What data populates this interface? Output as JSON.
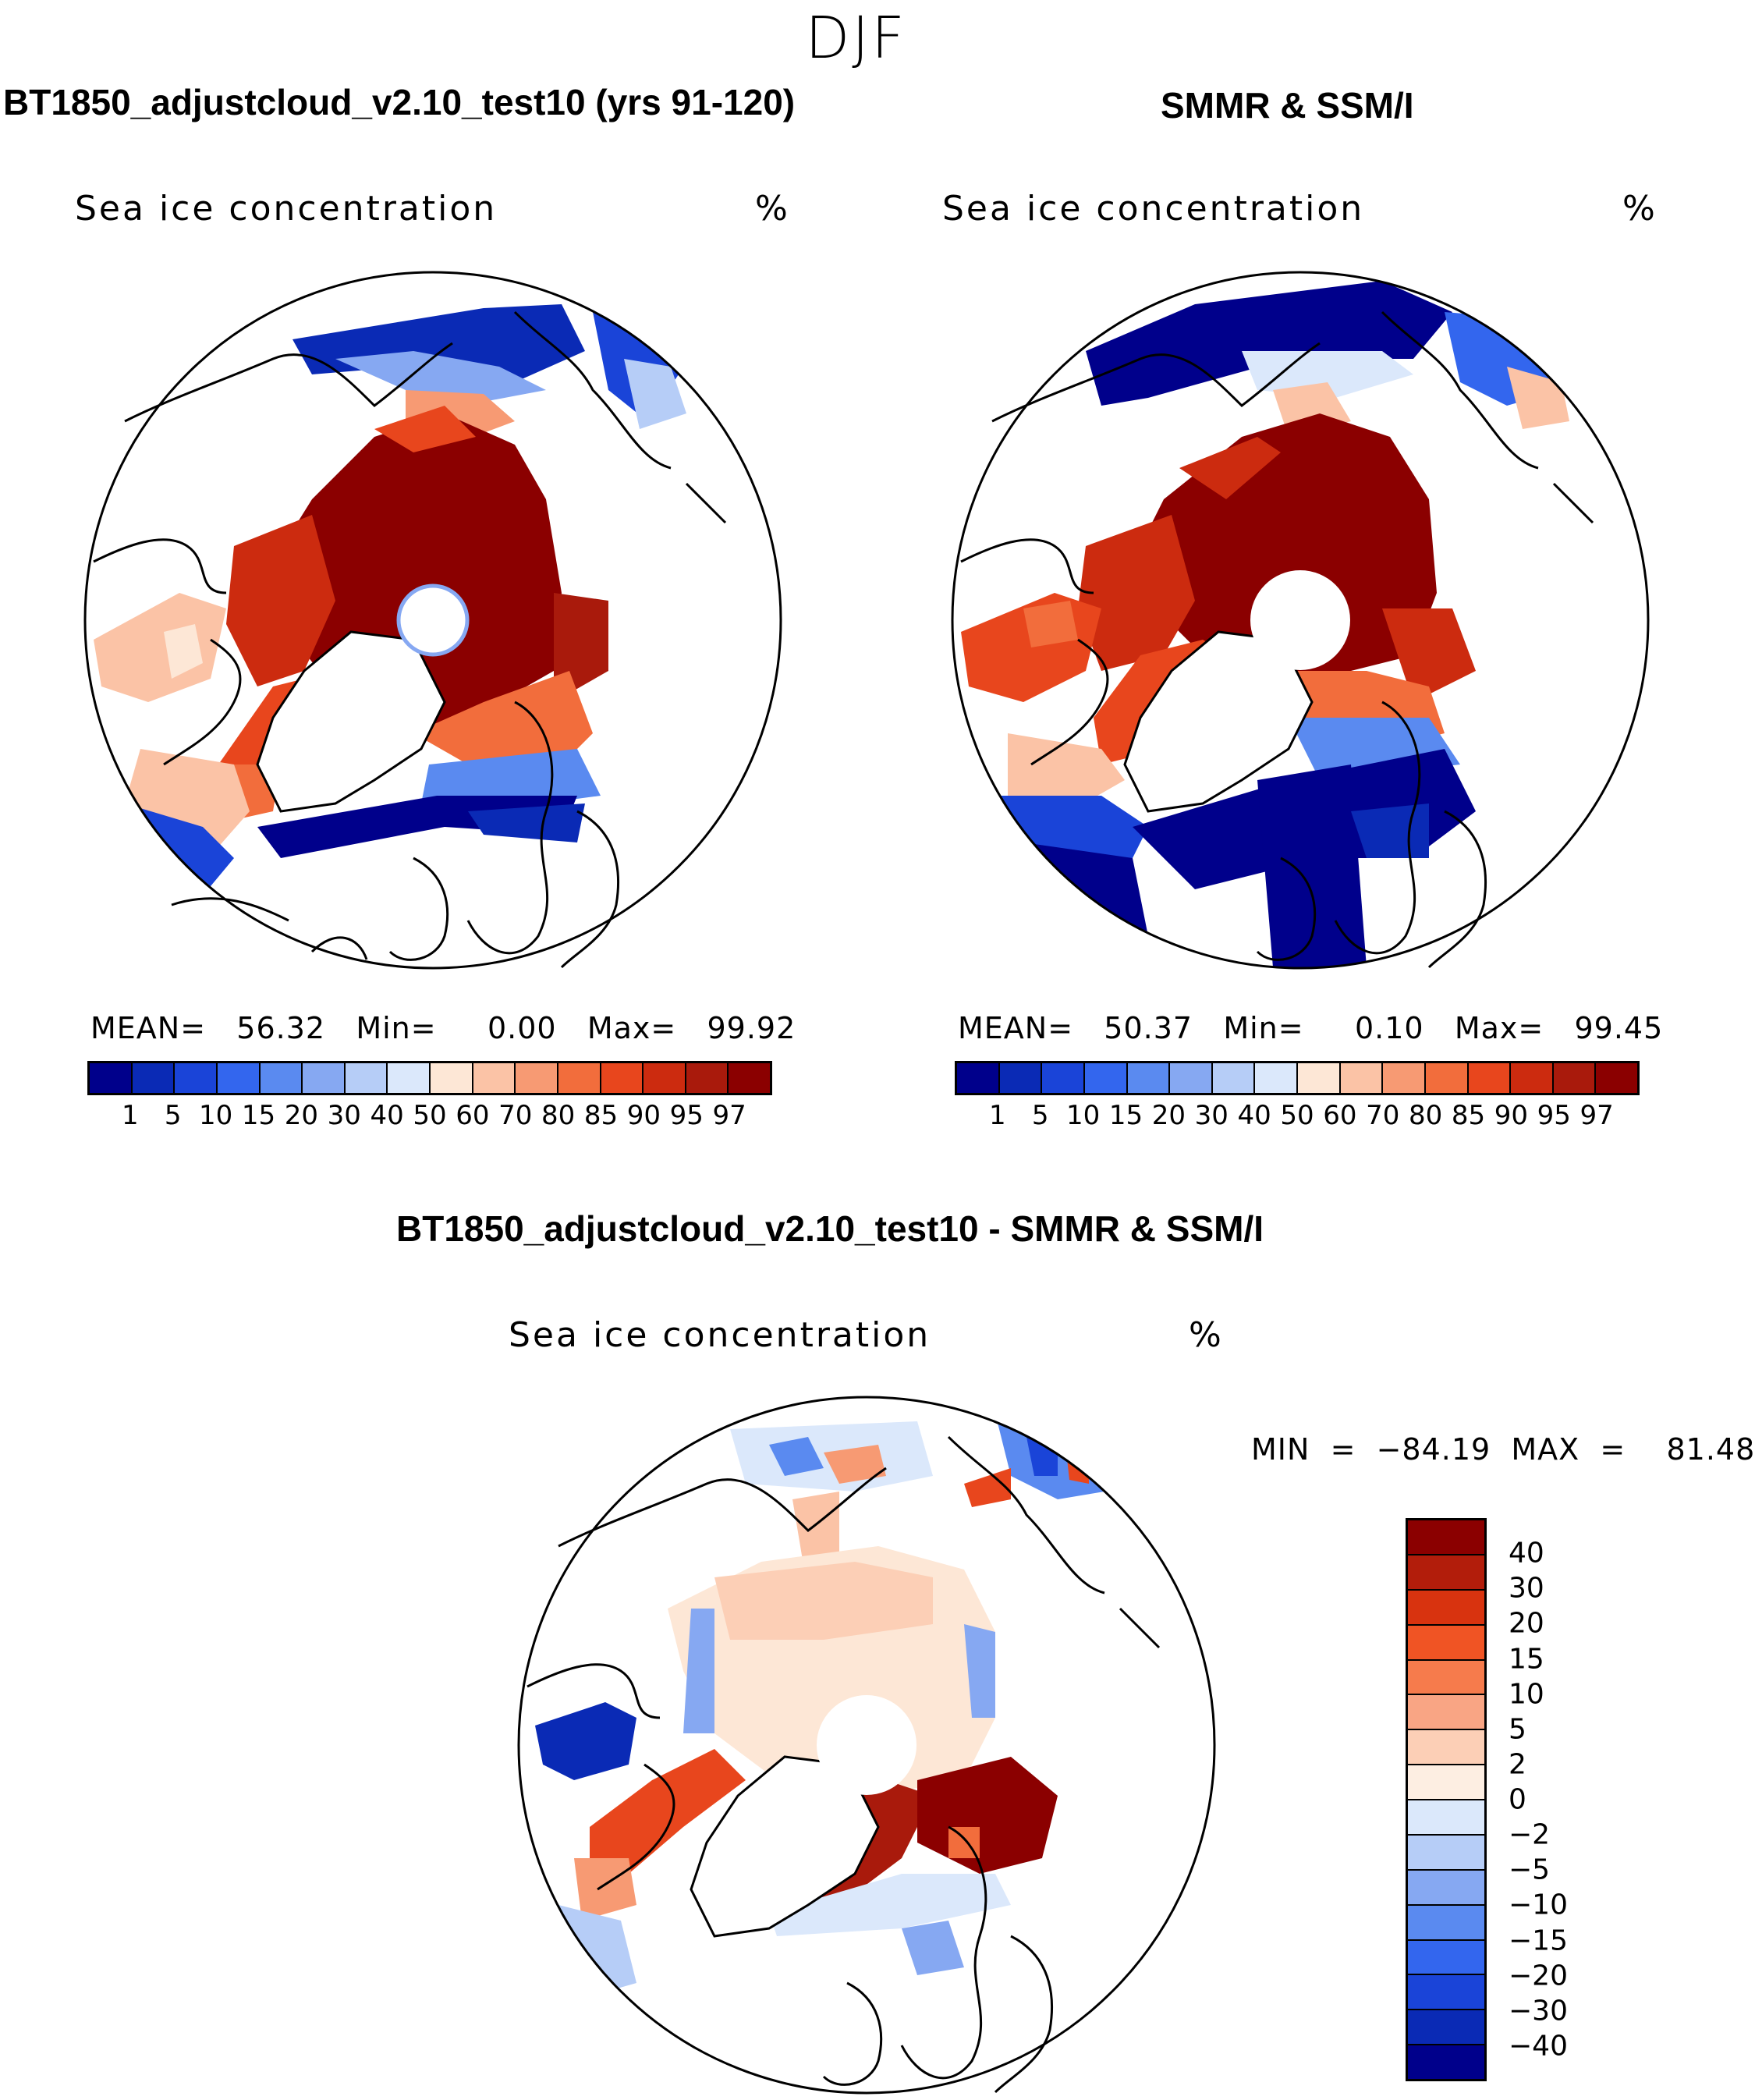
{
  "figure_title": "DJF",
  "panels": [
    {
      "title": "BT1850_adjustcloud_v2.10_test10 (yrs 91-120)",
      "variable": "Sea ice concentration",
      "units": "%",
      "stats_text": "MEAN=   56.32   Min=     0.00   Max=   99.92"
    },
    {
      "title": "SMMR & SSM/I",
      "variable": "Sea ice concentration",
      "units": "%",
      "stats_text": "MEAN=   50.37   Min=     0.10   Max=   99.45"
    },
    {
      "title": "BT1850_adjustcloud_v2.10_test10 - SMMR & SSM/I",
      "variable": "Sea ice concentration",
      "units": "%",
      "stats_text": "MIN  =  −84.19  MAX  =    81.48"
    }
  ],
  "abs_colorbar": {
    "colors": [
      "#00008b",
      "#0a2ab5",
      "#1a44d8",
      "#3366ee",
      "#5a8af0",
      "#86a8f2",
      "#b6cdf7",
      "#dbe8fb",
      "#fde7d6",
      "#fbc3a6",
      "#f79a73",
      "#f26d3c",
      "#e8461d",
      "#cc2b0f",
      "#a91a0c",
      "#8b0000"
    ],
    "labels": [
      "1",
      "5",
      "10",
      "15",
      "20",
      "30",
      "40",
      "50",
      "60",
      "70",
      "80",
      "85",
      "90",
      "95",
      "97"
    ]
  },
  "diff_colorbar": {
    "colors": [
      "#8b0000",
      "#b21d0b",
      "#d8330f",
      "#f05424",
      "#f67b4c",
      "#f9a584",
      "#fccfb6",
      "#fdeee2",
      "#dbe8fb",
      "#b6cdf7",
      "#86a8f2",
      "#5a8af0",
      "#3366ee",
      "#1a44d8",
      "#0a2ab5",
      "#00008b"
    ],
    "labels": [
      "40",
      "30",
      "20",
      "15",
      "10",
      "5",
      "2",
      "0",
      "−2",
      "−5",
      "−10",
      "−15",
      "−20",
      "−30",
      "−40"
    ]
  }
}
